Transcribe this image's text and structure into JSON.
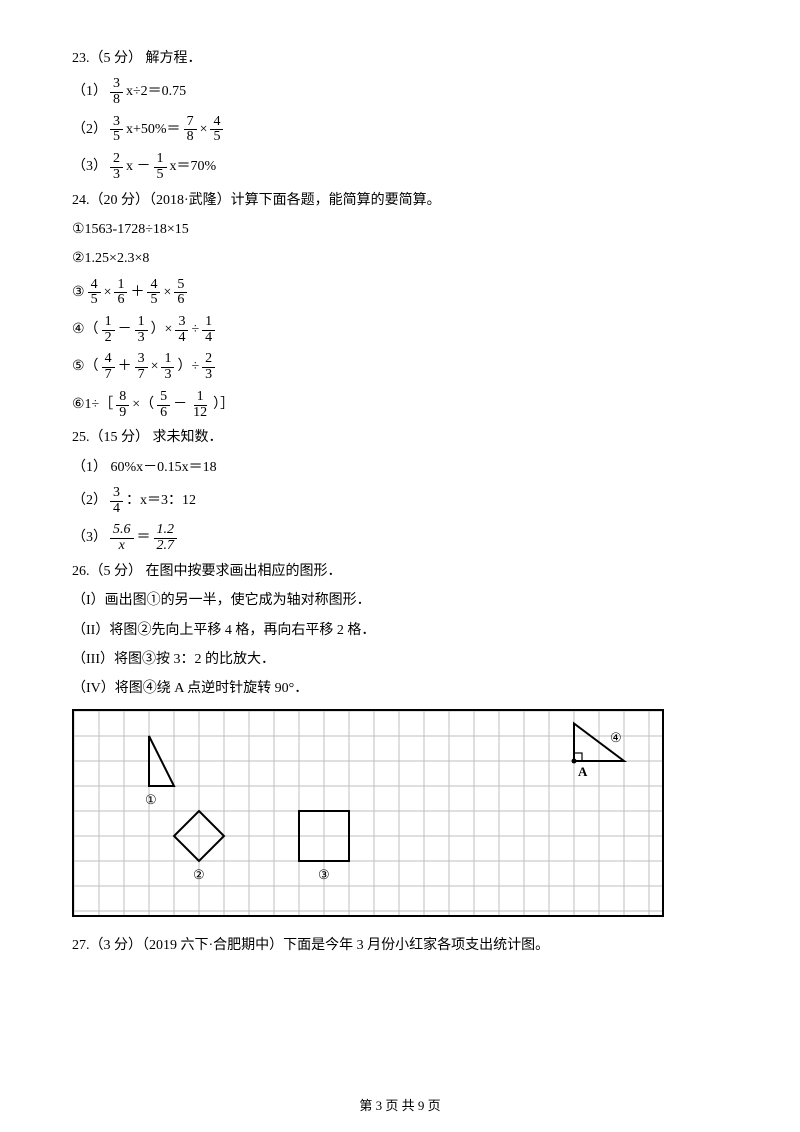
{
  "q23": {
    "head": "23.（5 分） 解方程．",
    "p1_label": "（1）",
    "p1_frac_n": "3",
    "p1_frac_d": "8",
    "p1_rest": " x÷2＝0.75",
    "p2_label": "（2）",
    "p2_f1_n": "3",
    "p2_f1_d": "5",
    "p2_mid1": " x+50%＝ ",
    "p2_f2_n": "7",
    "p2_f2_d": "8",
    "p2_mid2": " × ",
    "p2_f3_n": "4",
    "p2_f3_d": "5",
    "p3_label": "（3）",
    "p3_f1_n": "2",
    "p3_f1_d": "3",
    "p3_mid1": " x － ",
    "p3_f2_n": "1",
    "p3_f2_d": "5",
    "p3_rest": " x＝70%"
  },
  "q24": {
    "head": "24.（20 分）（2018·武隆）计算下面各题，能简算的要简算。",
    "l1": "①1563-1728÷18×15",
    "l2": "②1.25×2.3×8",
    "l3_label": "③",
    "l3_f1_n": "4",
    "l3_f1_d": "5",
    "l3_mid1": " × ",
    "l3_f2_n": "1",
    "l3_f2_d": "6",
    "l3_mid2": " ＋ ",
    "l3_f3_n": "4",
    "l3_f3_d": "5",
    "l3_mid3": " × ",
    "l3_f4_n": "5",
    "l3_f4_d": "6",
    "l4_label": "④（",
    "l4_f1_n": "1",
    "l4_f1_d": "2",
    "l4_mid1": " － ",
    "l4_f2_n": "1",
    "l4_f2_d": "3",
    "l4_mid2": "）× ",
    "l4_f3_n": "3",
    "l4_f3_d": "4",
    "l4_mid3": " ÷ ",
    "l4_f4_n": "1",
    "l4_f4_d": "4",
    "l5_label": "⑤（",
    "l5_f1_n": "4",
    "l5_f1_d": "7",
    "l5_mid1": " ＋ ",
    "l5_f2_n": "3",
    "l5_f2_d": "7",
    "l5_mid2": " × ",
    "l5_f3_n": "1",
    "l5_f3_d": "3",
    "l5_mid3": "）÷ ",
    "l5_f4_n": "2",
    "l5_f4_d": "3",
    "l6_label": "⑥1÷［",
    "l6_f1_n": "8",
    "l6_f1_d": "9",
    "l6_mid1": " ×（",
    "l6_f2_n": "5",
    "l6_f2_d": "6",
    "l6_mid2": " － ",
    "l6_f3_n": "1",
    "l6_f3_d": "12",
    "l6_mid3": "）］"
  },
  "q25": {
    "head": "25.（15 分） 求未知数．",
    "p1": "（1） 60%x－0.15x＝18",
    "p2_label": "（2）",
    "p2_f_n": "3",
    "p2_f_d": "4",
    "p2_rest": " ：x＝3：12",
    "p3_label": "（3）",
    "p3_f1_n": "5.6",
    "p3_f1_d": "x",
    "p3_mid": " ＝ ",
    "p3_f2_n": "1.2",
    "p3_f2_d": "2.7"
  },
  "q26": {
    "head": "26.（5 分） 在图中按要求画出相应的图形．",
    "p1": "（I）画出图①的另一半，使它成为轴对称图形．",
    "p2": "（II）将图②先向上平移 4 格，再向右平移 2 格．",
    "p3": "（III）将图③按 3：2 的比放大．",
    "p4": "（IV）将图④绕 A 点逆时针旋转 90°．"
  },
  "labels": {
    "c1": "①",
    "c2": "②",
    "c3": "③",
    "c4": "④",
    "A": "A"
  },
  "q27": "27.（3 分）（2019 六下·合肥期中）下面是今年 3 月份小红家各项支出统计图。",
  "footer": "第 3 页 共 9 页",
  "grid": {
    "stroke": "#bfbfbf",
    "stroke_width": 1,
    "shape_stroke": "#000000",
    "shape_width": 2,
    "cell": 25,
    "cols": 23,
    "rows": 8
  }
}
